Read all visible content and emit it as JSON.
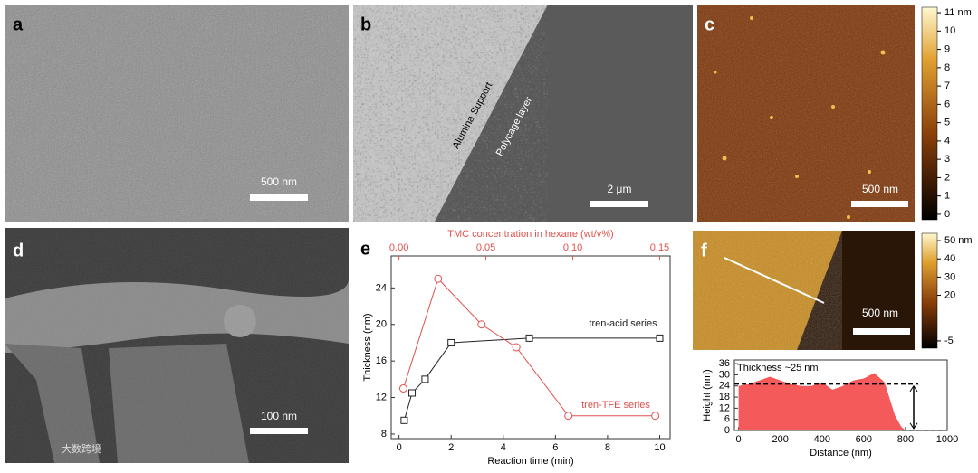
{
  "panels": [
    {
      "label": "a",
      "scale_bar": "500 nm"
    },
    {
      "label": "b",
      "scale_bar": "2 μm",
      "annotations": [
        "Alumina Support",
        "Polycage layer"
      ]
    },
    {
      "label": "c",
      "scale_bar": "500 nm",
      "colorbar": {
        "clim": [
          -0.3,
          11.3
        ],
        "ticks": [
          {
            "value": 11,
            "label": "11 nm"
          },
          10,
          9,
          8,
          7,
          6,
          5,
          4,
          3,
          2,
          1,
          0
        ]
      }
    },
    {
      "label": "d",
      "scale_bar": "100 nm"
    },
    {
      "label": "e"
    },
    {
      "label": "f",
      "scale_bar": "500 nm",
      "colorbar": {
        "clim": [
          -9,
          54
        ],
        "ticks": [
          {
            "value": 50,
            "label": "50 nm"
          },
          40,
          30,
          20,
          -5
        ]
      }
    }
  ],
  "watermark": "大数跨境",
  "chart_data": [
    {
      "type": "line",
      "x_label": "Reaction time (min)",
      "x2_label": "TMC concentration in hexane (wt/v%)",
      "y_label": "Thickness (nm)",
      "xlim": [
        -0.3,
        10.4
      ],
      "xticks": [
        0,
        2,
        4,
        6,
        8,
        10
      ],
      "x2lim": [
        -0.0045,
        0.156
      ],
      "x2ticks": [
        {
          "value": 0,
          "label": "0.00"
        },
        0.05,
        {
          "value": 0.1,
          "label": "0.10"
        },
        0.15
      ],
      "ylim": [
        7.5,
        27.5
      ],
      "yticks": [
        8,
        12,
        16,
        20,
        24
      ],
      "series": [
        {
          "name": "tren-acid series",
          "color": "#222222",
          "marker": "square",
          "x": [
            0.2,
            0.5,
            1,
            2,
            5,
            10
          ],
          "values": [
            9.5,
            12.5,
            14,
            18,
            18.5,
            18.5
          ]
        },
        {
          "name": "tren-TFE series",
          "color": "#e0504c",
          "marker": "circle",
          "axis": "x2",
          "x": [
            0.0025,
            0.0225,
            0.0475,
            0.0675,
            0.0975,
            0.1475
          ],
          "values": [
            13,
            25,
            20,
            17.5,
            10,
            10
          ]
        }
      ]
    },
    {
      "type": "area",
      "annotation": "Thickness ~25 nm",
      "x_label": "Distance (nm)",
      "y_label": "Height (nm)",
      "xlim": [
        -20,
        1000
      ],
      "xticks": [
        0,
        200,
        400,
        600,
        800,
        1000
      ],
      "ylim": [
        0,
        38
      ],
      "yticks": [
        0,
        6,
        12,
        18,
        24,
        30,
        36
      ],
      "series": [
        {
          "color": "#f55a5a",
          "x": [
            0,
            50,
            100,
            150,
            200,
            250,
            300,
            350,
            400,
            450,
            500,
            550,
            600,
            650,
            700,
            750,
            780,
            800
          ],
          "values": [
            24,
            25,
            27,
            29,
            27,
            25,
            24,
            24,
            26,
            22,
            24,
            27,
            28,
            31,
            26,
            8,
            2,
            0
          ]
        }
      ]
    }
  ]
}
